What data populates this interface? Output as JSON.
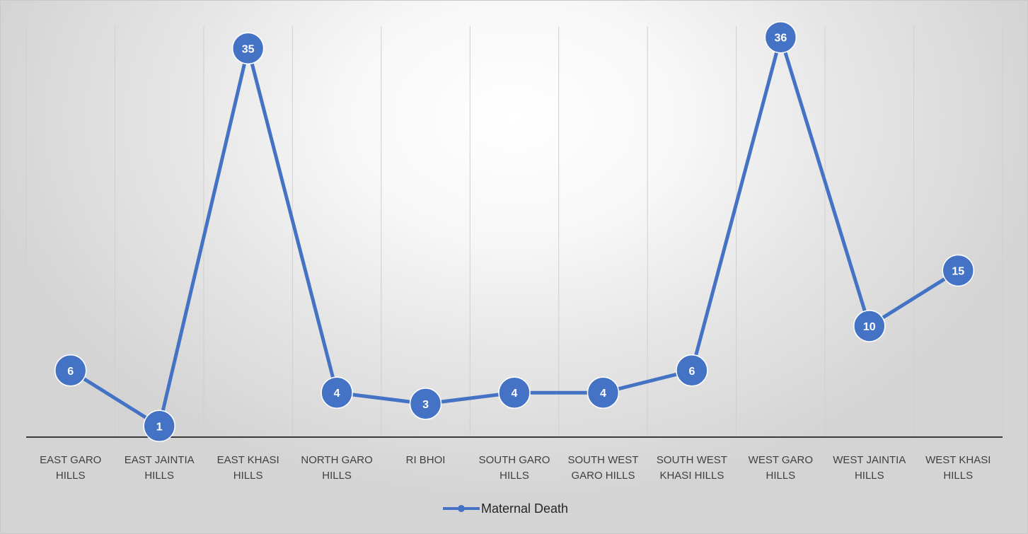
{
  "chart_data": {
    "type": "line",
    "categories": [
      [
        "EAST GARO",
        "HILLS"
      ],
      [
        "EAST JAINTIA",
        "HILLS"
      ],
      [
        "EAST KHASI",
        "HILLS"
      ],
      [
        "NORTH GARO",
        "HILLS"
      ],
      [
        "RI BHOI"
      ],
      [
        "SOUTH GARO",
        "HILLS"
      ],
      [
        "SOUTH WEST",
        "GARO HILLS"
      ],
      [
        "SOUTH WEST",
        "KHASI HILLS"
      ],
      [
        "WEST GARO",
        "HILLS"
      ],
      [
        "WEST JAINTIA",
        "HILLS"
      ],
      [
        "WEST KHASI",
        "HILLS"
      ]
    ],
    "series": [
      {
        "name": "Maternal Death",
        "values": [
          6,
          1,
          35,
          4,
          3,
          4,
          4,
          6,
          36,
          10,
          15
        ],
        "color": "#4472c4"
      }
    ],
    "ylim": [
      0,
      37
    ],
    "grid": "vertical",
    "data_labels": true,
    "legend": "bottom"
  }
}
